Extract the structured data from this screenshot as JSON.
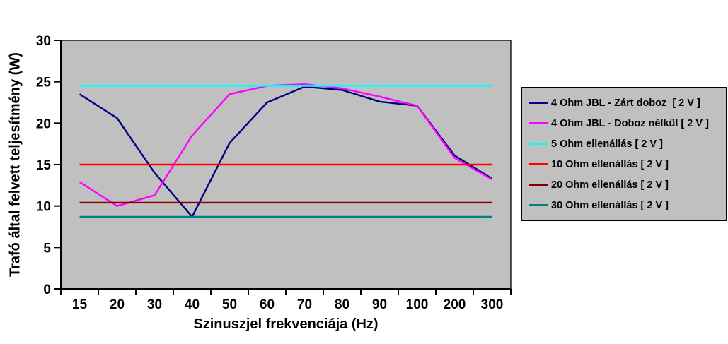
{
  "chart_data": {
    "type": "line",
    "title": "",
    "xlabel": "Szinuszjel frekvenciája (Hz)",
    "ylabel": "Trafó által felvett teljesítmény (W)",
    "categories": [
      "15",
      "20",
      "30",
      "40",
      "50",
      "60",
      "70",
      "80",
      "90",
      "100",
      "200",
      "300"
    ],
    "ylim": [
      0,
      30
    ],
    "yticks": [
      0,
      5,
      10,
      15,
      20,
      25,
      30
    ],
    "grid": "off",
    "legend_position": "right",
    "plot_bg_color": "#c0c0c0",
    "axis_color": "#000000",
    "series": [
      {
        "name": "4 Ohm JBL - Zárt doboz  [ 2 V ]",
        "color": "#000080",
        "values": [
          23.5,
          20.6,
          14.0,
          8.7,
          17.6,
          22.5,
          24.4,
          24.0,
          22.6,
          22.1,
          16.1,
          13.3
        ]
      },
      {
        "name": "4 Ohm JBL - Doboz nélkül [ 2 V ]",
        "color": "#ff00ff",
        "values": [
          12.9,
          10.0,
          11.3,
          18.5,
          23.5,
          24.5,
          24.7,
          24.2,
          23.2,
          22.1,
          15.8,
          13.2
        ]
      },
      {
        "name": "5 Ohm ellenállás [ 2 V ]",
        "color": "#00ffff",
        "values": [
          24.5,
          24.5,
          24.5,
          24.5,
          24.5,
          24.5,
          24.5,
          24.5,
          24.5,
          24.5,
          24.5,
          24.5
        ]
      },
      {
        "name": "10 Ohm ellenállás [ 2 V ]",
        "color": "#ff0000",
        "values": [
          15.0,
          15.0,
          15.0,
          15.0,
          15.0,
          15.0,
          15.0,
          15.0,
          15.0,
          15.0,
          15.0,
          15.0
        ]
      },
      {
        "name": "20 Ohm ellenállás [ 2 V ]",
        "color": "#800000",
        "values": [
          10.4,
          10.4,
          10.4,
          10.4,
          10.4,
          10.4,
          10.4,
          10.4,
          10.4,
          10.4,
          10.4,
          10.4
        ]
      },
      {
        "name": "30 Ohm ellenállás [ 2 V ]",
        "color": "#008080",
        "values": [
          8.7,
          8.7,
          8.7,
          8.7,
          8.7,
          8.7,
          8.7,
          8.7,
          8.7,
          8.7,
          8.7,
          8.7
        ]
      }
    ]
  }
}
